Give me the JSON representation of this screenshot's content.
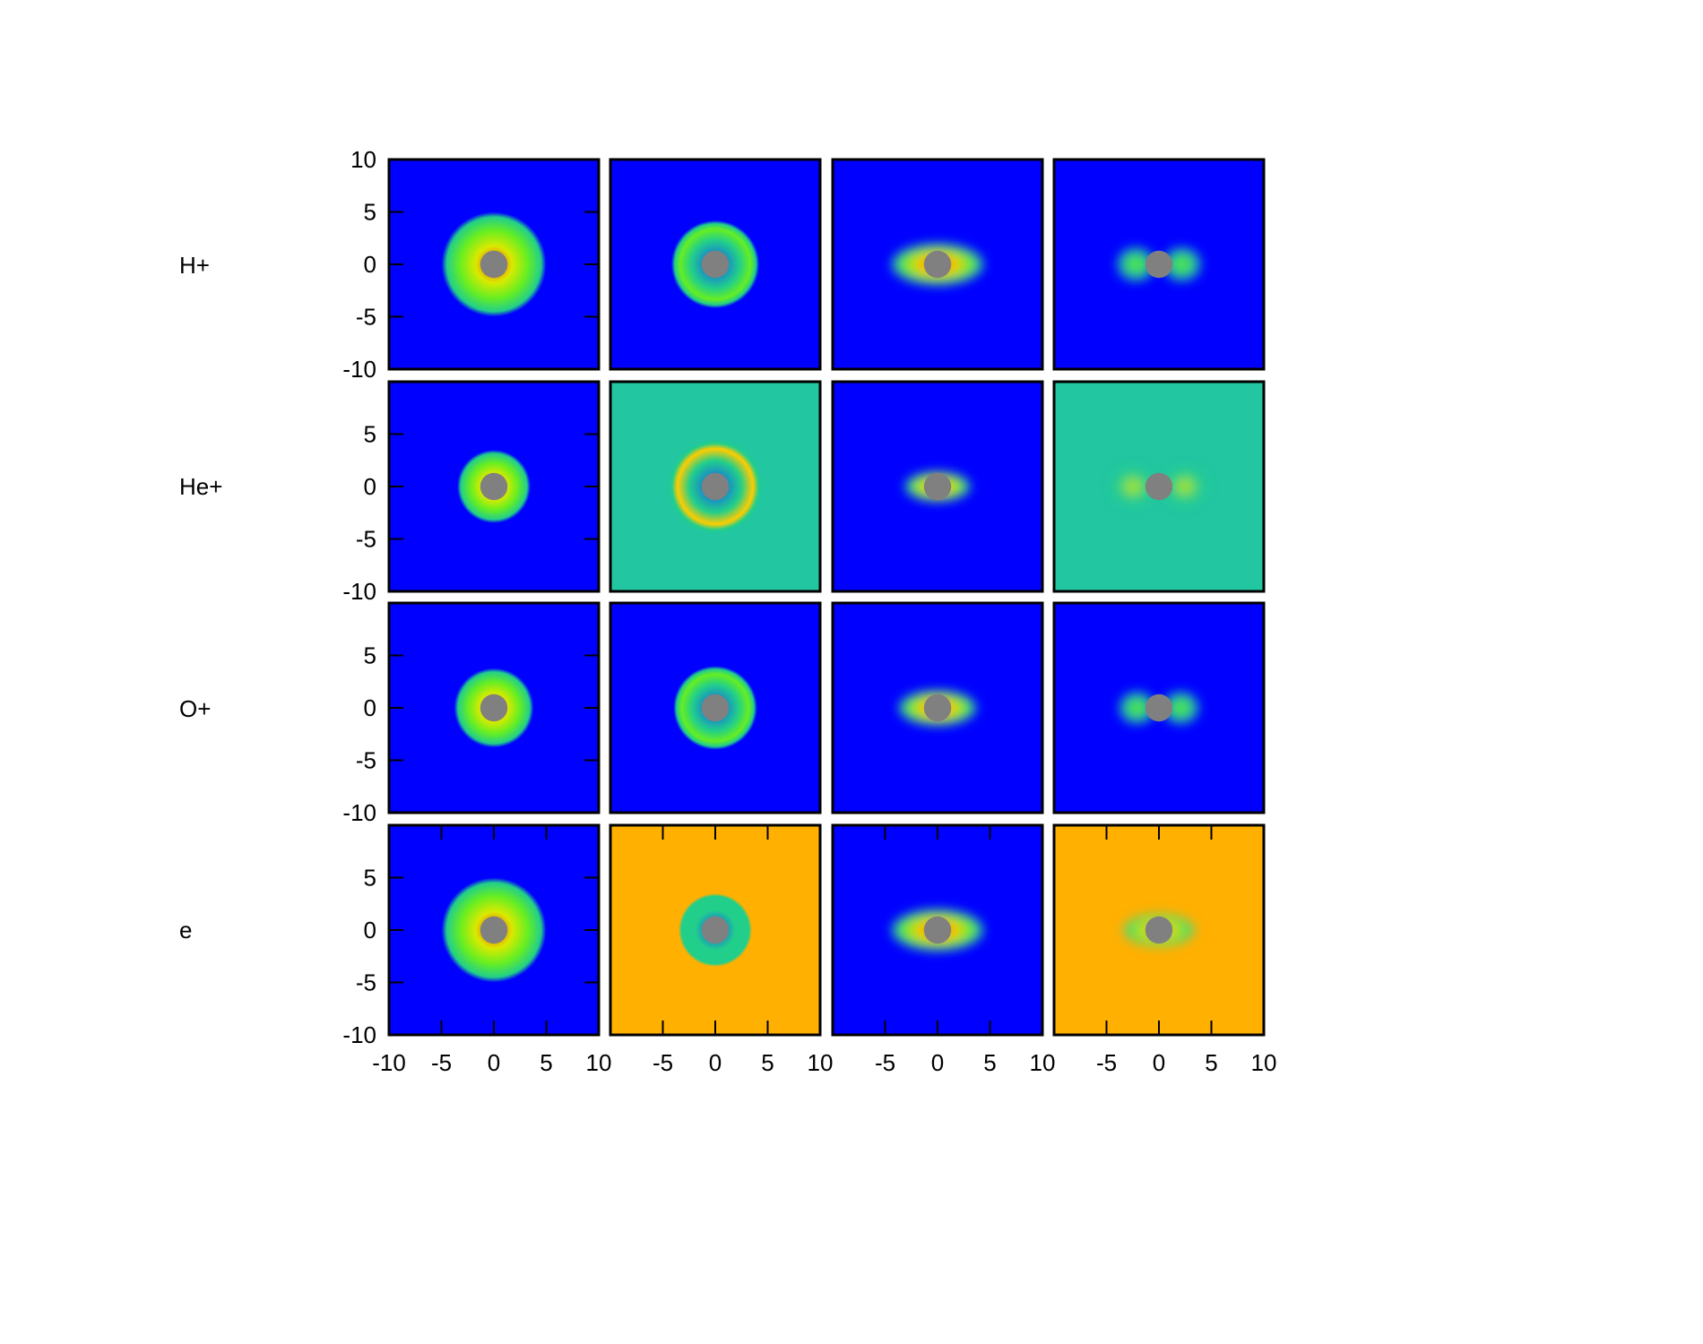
{
  "chart_data": {
    "type": "heatmap",
    "layout": {
      "rows": 4,
      "cols": 4
    },
    "row_labels": [
      "H+",
      "He+",
      "O+",
      "e"
    ],
    "xlim": [
      -10,
      10
    ],
    "ylim": [
      -10,
      10
    ],
    "x_ticks": [
      "-10",
      "-5",
      "0",
      "5",
      "10"
    ],
    "y_ticks_first_row": [
      "10",
      "5",
      "0",
      "-5",
      "-10"
    ],
    "y_ticks_other_rows": [
      "5",
      "0",
      "-5",
      "-10"
    ],
    "colormap": [
      "#0000ff",
      "#0b84d8",
      "#22cf8a",
      "#66ee22",
      "#d8ea00",
      "#ffcc00",
      "#ff9900",
      "#ff3300"
    ],
    "obstacle": {
      "center": [
        0,
        0
      ],
      "radius": 1.3,
      "color": "#808080"
    },
    "panels": [
      {
        "row": 0,
        "col": 0,
        "bg": "#0000ff",
        "pattern": "blob",
        "radius": 5.0,
        "peak": "#ff4400"
      },
      {
        "row": 0,
        "col": 1,
        "bg": "#0000ff",
        "pattern": "ring",
        "radius": 4.2,
        "peak": "#66ee22"
      },
      {
        "row": 0,
        "col": 2,
        "bg": "#0000ff",
        "pattern": "bar",
        "radius": 4.5,
        "peak": "#ff3300"
      },
      {
        "row": 0,
        "col": 3,
        "bg": "#0000ff",
        "pattern": "lobes",
        "radius": 4.0,
        "peak": "#66ee22"
      },
      {
        "row": 1,
        "col": 0,
        "bg": "#0000ff",
        "pattern": "blob",
        "radius": 3.5,
        "peak": "#22cf8a"
      },
      {
        "row": 1,
        "col": 1,
        "bg": "#22c6a0",
        "pattern": "ring",
        "radius": 4.5,
        "peak": "#ffcc00"
      },
      {
        "row": 1,
        "col": 2,
        "bg": "#0000ff",
        "pattern": "bar",
        "radius": 3.2,
        "peak": "#22cf8a"
      },
      {
        "row": 1,
        "col": 3,
        "bg": "#22c6a0",
        "pattern": "lobes",
        "radius": 4.5,
        "peak": "#d8ea00"
      },
      {
        "row": 2,
        "col": 0,
        "bg": "#0000ff",
        "pattern": "blob",
        "radius": 3.8,
        "peak": "#ff9900"
      },
      {
        "row": 2,
        "col": 1,
        "bg": "#0000ff",
        "pattern": "ring",
        "radius": 4.0,
        "peak": "#66ee22"
      },
      {
        "row": 2,
        "col": 2,
        "bg": "#0000ff",
        "pattern": "bar",
        "radius": 3.8,
        "peak": "#ff3300"
      },
      {
        "row": 2,
        "col": 3,
        "bg": "#0000ff",
        "pattern": "lobes",
        "radius": 3.8,
        "peak": "#66ee22"
      },
      {
        "row": 3,
        "col": 0,
        "bg": "#0000ff",
        "pattern": "blob",
        "radius": 5.0,
        "peak": "#ff4400"
      },
      {
        "row": 3,
        "col": 1,
        "bg": "#ffb000",
        "pattern": "ring",
        "radius": 3.5,
        "peak": "#22cf8a"
      },
      {
        "row": 3,
        "col": 2,
        "bg": "#0000ff",
        "pattern": "bar",
        "radius": 4.5,
        "peak": "#ff3300"
      },
      {
        "row": 3,
        "col": 3,
        "bg": "#ffb000",
        "pattern": "bar",
        "radius": 3.5,
        "peak": "#22cf8a"
      }
    ]
  }
}
